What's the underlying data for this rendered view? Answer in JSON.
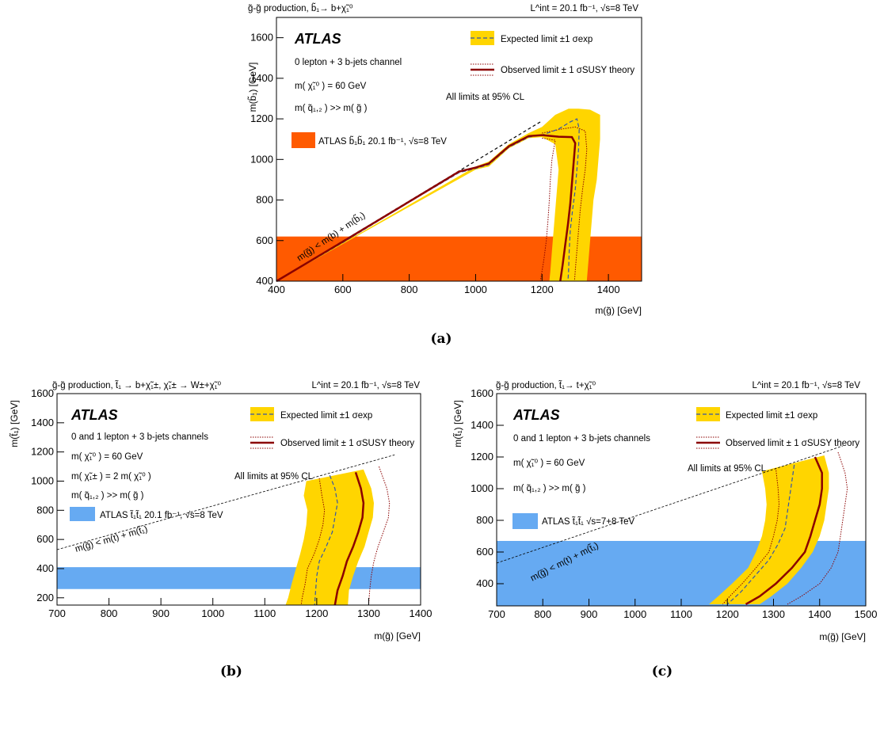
{
  "colors": {
    "expected_band": "#ffd500",
    "expected_line": "#3355aa",
    "observed_line": "#8b0000",
    "excluded_a": "#ff5a00",
    "excluded_bc": "#66aaf2"
  },
  "chart_data": [
    {
      "id": "a",
      "type": "line",
      "caption": "(a)",
      "header_left": "g̃-g̃ production, b̃₁→ b+χ̃₁⁰",
      "header_right": "L^int = 20.1 fb⁻¹, √s=8 TeV",
      "atlas": "ATLAS",
      "info_lines": [
        "0 lepton + 3 b-jets channel",
        "m( χ̃₁⁰ ) = 60 GeV",
        "m( q̃₁,₂ ) >> m( g̃ )"
      ],
      "cl_text": "All limits at 95% CL",
      "legend_expected": "Expected limit ±1 σexp",
      "legend_observed": "Observed limit ± 1 σSUSY theory",
      "legend_excluded": "ATLAS b̃₁b̃₁ 20.1 fb⁻¹, √s=8 TeV",
      "kin_label": "m(g̃) < m(b) + m(b̃₁)",
      "xlabel": "m(g̃) [GeV]",
      "ylabel": "m(b̃₁) [GeV]",
      "xlim": [
        400,
        1500
      ],
      "ylim": [
        400,
        1700
      ],
      "xticks": [
        400,
        600,
        800,
        1000,
        1200,
        1400
      ],
      "yticks": [
        400,
        600,
        800,
        1000,
        1200,
        1400,
        1600
      ],
      "excluded_region": {
        "x": [
          400,
          1500
        ],
        "y": [
          400,
          620
        ]
      },
      "kinematic_line": [
        [
          400,
          400
        ],
        [
          1200,
          1190
        ]
      ],
      "series": [
        {
          "name": "Expected limit",
          "values": [
            [
              400,
              395
            ],
            [
              600,
              590
            ],
            [
              800,
              790
            ],
            [
              950,
              935
            ],
            [
              1000,
              955
            ],
            [
              1040,
              975
            ],
            [
              1100,
              1060
            ],
            [
              1160,
              1110
            ],
            [
              1200,
              1120
            ],
            [
              1250,
              1150
            ],
            [
              1285,
              1185
            ],
            [
              1305,
              1200
            ],
            [
              1312,
              1150
            ],
            [
              1310,
              1050
            ],
            [
              1305,
              950
            ],
            [
              1300,
              850
            ],
            [
              1292,
              750
            ],
            [
              1285,
              650
            ],
            [
              1282,
              550
            ],
            [
              1280,
              450
            ],
            [
              1278,
              400
            ]
          ]
        },
        {
          "name": "Observed limit",
          "values": [
            [
              400,
              400
            ],
            [
              600,
              595
            ],
            [
              800,
              792
            ],
            [
              950,
              940
            ],
            [
              1000,
              960
            ],
            [
              1040,
              980
            ],
            [
              1100,
              1065
            ],
            [
              1160,
              1115
            ],
            [
              1200,
              1120
            ],
            [
              1250,
              1112
            ],
            [
              1290,
              1110
            ],
            [
              1300,
              1080
            ],
            [
              1295,
              980
            ],
            [
              1290,
              880
            ],
            [
              1285,
              780
            ],
            [
              1278,
              680
            ],
            [
              1270,
              580
            ],
            [
              1262,
              480
            ],
            [
              1255,
              400
            ]
          ]
        }
      ],
      "band_low": [
        [
          400,
          400
        ],
        [
          1000,
          950
        ],
        [
          1040,
          965
        ],
        [
          1100,
          1055
        ],
        [
          1160,
          1105
        ],
        [
          1200,
          1110
        ],
        [
          1240,
          1075
        ],
        [
          1250,
          950
        ],
        [
          1245,
          850
        ],
        [
          1240,
          750
        ],
        [
          1235,
          650
        ],
        [
          1230,
          550
        ],
        [
          1225,
          450
        ],
        [
          1222,
          400
        ]
      ],
      "band_high": [
        [
          400,
          400
        ],
        [
          1000,
          965
        ],
        [
          1040,
          990
        ],
        [
          1100,
          1075
        ],
        [
          1160,
          1130
        ],
        [
          1200,
          1160
        ],
        [
          1240,
          1220
        ],
        [
          1280,
          1250
        ],
        [
          1310,
          1250
        ],
        [
          1345,
          1245
        ],
        [
          1375,
          1220
        ],
        [
          1375,
          1100
        ],
        [
          1370,
          1000
        ],
        [
          1365,
          900
        ],
        [
          1355,
          800
        ],
        [
          1350,
          700
        ],
        [
          1345,
          600
        ],
        [
          1340,
          500
        ],
        [
          1335,
          400
        ]
      ],
      "obs_band_low": [
        [
          1200,
          1105
        ],
        [
          1240,
          1095
        ],
        [
          1230,
          1000
        ],
        [
          1225,
          900
        ],
        [
          1222,
          800
        ],
        [
          1218,
          700
        ],
        [
          1213,
          600
        ],
        [
          1205,
          500
        ],
        [
          1195,
          400
        ]
      ],
      "obs_band_high": [
        [
          1200,
          1130
        ],
        [
          1260,
          1150
        ],
        [
          1300,
          1160
        ],
        [
          1330,
          1140
        ],
        [
          1335,
          1050
        ],
        [
          1330,
          950
        ],
        [
          1322,
          850
        ],
        [
          1315,
          750
        ],
        [
          1310,
          650
        ],
        [
          1305,
          550
        ],
        [
          1300,
          450
        ],
        [
          1298,
          400
        ]
      ]
    },
    {
      "id": "b",
      "type": "line",
      "caption": "(b)",
      "header_left": "g̃-g̃ production, t̃₁ → b+χ̃₁±, χ̃₁± → W±+χ̃₁⁰",
      "header_right": "L^int = 20.1 fb⁻¹, √s=8 TeV",
      "atlas": "ATLAS",
      "info_lines": [
        "0 and 1 lepton + 3 b-jets channels",
        "m( χ̃₁⁰ ) = 60 GeV",
        "m( χ̃₁± ) = 2 m( χ̃₁⁰ )",
        "m( q̃₁,₂ ) >> m( g̃ )"
      ],
      "cl_text": "All limits at 95% CL",
      "legend_expected": "Expected limit ±1 σexp",
      "legend_observed": "Observed limit ± 1 σSUSY theory",
      "legend_excluded": "ATLAS t̃₁t̃₁ 20.1 fb⁻¹, √s=8 TeV",
      "kin_label": "m(g̃) < m(t) + m(t̃₁)",
      "xlabel": "m(g̃) [GeV]",
      "ylabel": "m(t̃₁) [GeV]",
      "xlim": [
        700,
        1400
      ],
      "ylim": [
        150,
        1600
      ],
      "xticks": [
        700,
        800,
        900,
        1000,
        1100,
        1200,
        1300,
        1400
      ],
      "yticks": [
        200,
        400,
        600,
        800,
        1000,
        1200,
        1400,
        1600
      ],
      "excluded_region": {
        "x": [
          700,
          1400
        ],
        "y": [
          260,
          410
        ]
      },
      "kinematic_line": [
        [
          700,
          530
        ],
        [
          1350,
          1180
        ]
      ],
      "series": [
        {
          "name": "Expected limit",
          "values": [
            [
              1225,
              1040
            ],
            [
              1235,
              950
            ],
            [
              1240,
              850
            ],
            [
              1235,
              750
            ],
            [
              1230,
              650
            ],
            [
              1218,
              550
            ],
            [
              1205,
              450
            ],
            [
              1200,
              350
            ],
            [
              1198,
              250
            ],
            [
              1196,
              150
            ]
          ]
        },
        {
          "name": "Observed limit",
          "values": [
            [
              1275,
              1060
            ],
            [
              1285,
              950
            ],
            [
              1290,
              850
            ],
            [
              1288,
              750
            ],
            [
              1280,
              650
            ],
            [
              1270,
              550
            ],
            [
              1258,
              450
            ],
            [
              1250,
              350
            ],
            [
              1240,
              250
            ],
            [
              1235,
              150
            ]
          ]
        }
      ],
      "band_low": [
        [
          1180,
          1000
        ],
        [
          1175,
          900
        ],
        [
          1182,
          800
        ],
        [
          1180,
          700
        ],
        [
          1175,
          600
        ],
        [
          1168,
          500
        ],
        [
          1160,
          400
        ],
        [
          1152,
          300
        ],
        [
          1145,
          200
        ],
        [
          1140,
          150
        ]
      ],
      "band_high": [
        [
          1290,
          1080
        ],
        [
          1305,
          950
        ],
        [
          1310,
          850
        ],
        [
          1308,
          750
        ],
        [
          1300,
          650
        ],
        [
          1292,
          550
        ],
        [
          1280,
          450
        ],
        [
          1270,
          350
        ],
        [
          1262,
          250
        ],
        [
          1260,
          150
        ]
      ],
      "obs_band_low": [
        [
          1205,
          1020
        ],
        [
          1210,
          900
        ],
        [
          1215,
          800
        ],
        [
          1212,
          700
        ],
        [
          1205,
          600
        ],
        [
          1195,
          500
        ],
        [
          1182,
          400
        ],
        [
          1178,
          300
        ],
        [
          1172,
          200
        ],
        [
          1170,
          150
        ]
      ],
      "obs_band_high": [
        [
          1320,
          1100
        ],
        [
          1335,
          950
        ],
        [
          1340,
          850
        ],
        [
          1338,
          750
        ],
        [
          1328,
          650
        ],
        [
          1318,
          550
        ],
        [
          1310,
          450
        ],
        [
          1305,
          350
        ],
        [
          1302,
          250
        ],
        [
          1300,
          150
        ]
      ]
    },
    {
      "id": "c",
      "type": "line",
      "caption": "(c)",
      "header_left": "g̃-g̃ production, t̃₁→ t+χ̃₁⁰",
      "header_right": "L^int = 20.1 fb⁻¹, √s=8 TeV",
      "atlas": "ATLAS",
      "info_lines": [
        "0 and 1 lepton + 3 b-jets channels",
        "m( χ̃₁⁰ ) = 60 GeV",
        "m( q̃₁,₂ ) >> m( g̃ )"
      ],
      "cl_text": "All limits at 95% CL",
      "legend_expected": "Expected limit ±1 σexp",
      "legend_observed": "Observed limit ± 1 σSUSY theory",
      "legend_excluded": "ATLAS t̃₁t̃₁ √s=7+8 TeV",
      "kin_label": "m(g̃) < m(t) + m(t̃₁)",
      "xlabel": "m(g̃) [GeV]",
      "ylabel": "m(t̃₁) [GeV]",
      "xlim": [
        700,
        1500
      ],
      "ylim": [
        260,
        1600
      ],
      "xticks": [
        700,
        800,
        900,
        1000,
        1100,
        1200,
        1300,
        1400,
        1500
      ],
      "yticks": [
        400,
        600,
        800,
        1000,
        1200,
        1400,
        1600
      ],
      "excluded_region": {
        "x": [
          700,
          1500
        ],
        "y": [
          260,
          670
        ]
      },
      "kinematic_line": [
        [
          700,
          530
        ],
        [
          1450,
          1270
        ]
      ],
      "series": [
        {
          "name": "Expected limit",
          "values": [
            [
              1345,
              1150
            ],
            [
              1340,
              1050
            ],
            [
              1335,
              950
            ],
            [
              1330,
              850
            ],
            [
              1325,
              750
            ],
            [
              1310,
              650
            ],
            [
              1290,
              550
            ],
            [
              1260,
              450
            ],
            [
              1230,
              350
            ],
            [
              1200,
              270
            ]
          ]
        },
        {
          "name": "Observed limit",
          "values": [
            [
              1390,
              1200
            ],
            [
              1405,
              1100
            ],
            [
              1405,
              1000
            ],
            [
              1400,
              900
            ],
            [
              1390,
              800
            ],
            [
              1380,
              700
            ],
            [
              1368,
              600
            ],
            [
              1340,
              500
            ],
            [
              1305,
              400
            ],
            [
              1270,
              320
            ],
            [
              1240,
              270
            ]
          ]
        }
      ],
      "band_low": [
        [
          1275,
          1110
        ],
        [
          1282,
          1000
        ],
        [
          1285,
          900
        ],
        [
          1282,
          800
        ],
        [
          1275,
          700
        ],
        [
          1262,
          600
        ],
        [
          1245,
          500
        ],
        [
          1210,
          400
        ],
        [
          1180,
          320
        ],
        [
          1160,
          270
        ]
      ],
      "band_high": [
        [
          1410,
          1210
        ],
        [
          1420,
          1100
        ],
        [
          1420,
          1000
        ],
        [
          1415,
          900
        ],
        [
          1410,
          800
        ],
        [
          1400,
          700
        ],
        [
          1385,
          600
        ],
        [
          1360,
          500
        ],
        [
          1330,
          400
        ],
        [
          1295,
          320
        ],
        [
          1270,
          270
        ]
      ],
      "obs_band_low": [
        [
          1305,
          1130
        ],
        [
          1310,
          1000
        ],
        [
          1312,
          900
        ],
        [
          1308,
          800
        ],
        [
          1300,
          700
        ],
        [
          1290,
          600
        ],
        [
          1262,
          500
        ],
        [
          1232,
          400
        ],
        [
          1205,
          320
        ],
        [
          1190,
          270
        ]
      ],
      "obs_band_high": [
        [
          1440,
          1230
        ],
        [
          1455,
          1100
        ],
        [
          1460,
          1000
        ],
        [
          1455,
          900
        ],
        [
          1450,
          800
        ],
        [
          1445,
          700
        ],
        [
          1440,
          600
        ],
        [
          1425,
          500
        ],
        [
          1400,
          400
        ],
        [
          1360,
          320
        ],
        [
          1330,
          270
        ]
      ]
    }
  ]
}
